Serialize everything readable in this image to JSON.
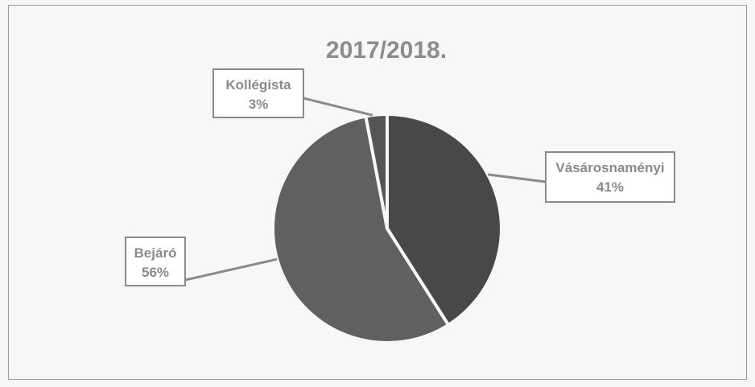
{
  "chart_data": {
    "type": "pie",
    "title": "2017/2018.",
    "slices": [
      {
        "label": "Vásárosnaményi",
        "percent_label": "41%",
        "value": 41,
        "color": "#484848"
      },
      {
        "label": "Bejáró",
        "percent_label": "56%",
        "value": 56,
        "color": "#606060"
      },
      {
        "label": "Kollégista",
        "percent_label": "3%",
        "value": 3,
        "color": "#555555"
      }
    ],
    "legend": "none",
    "data_labels": "callout"
  }
}
